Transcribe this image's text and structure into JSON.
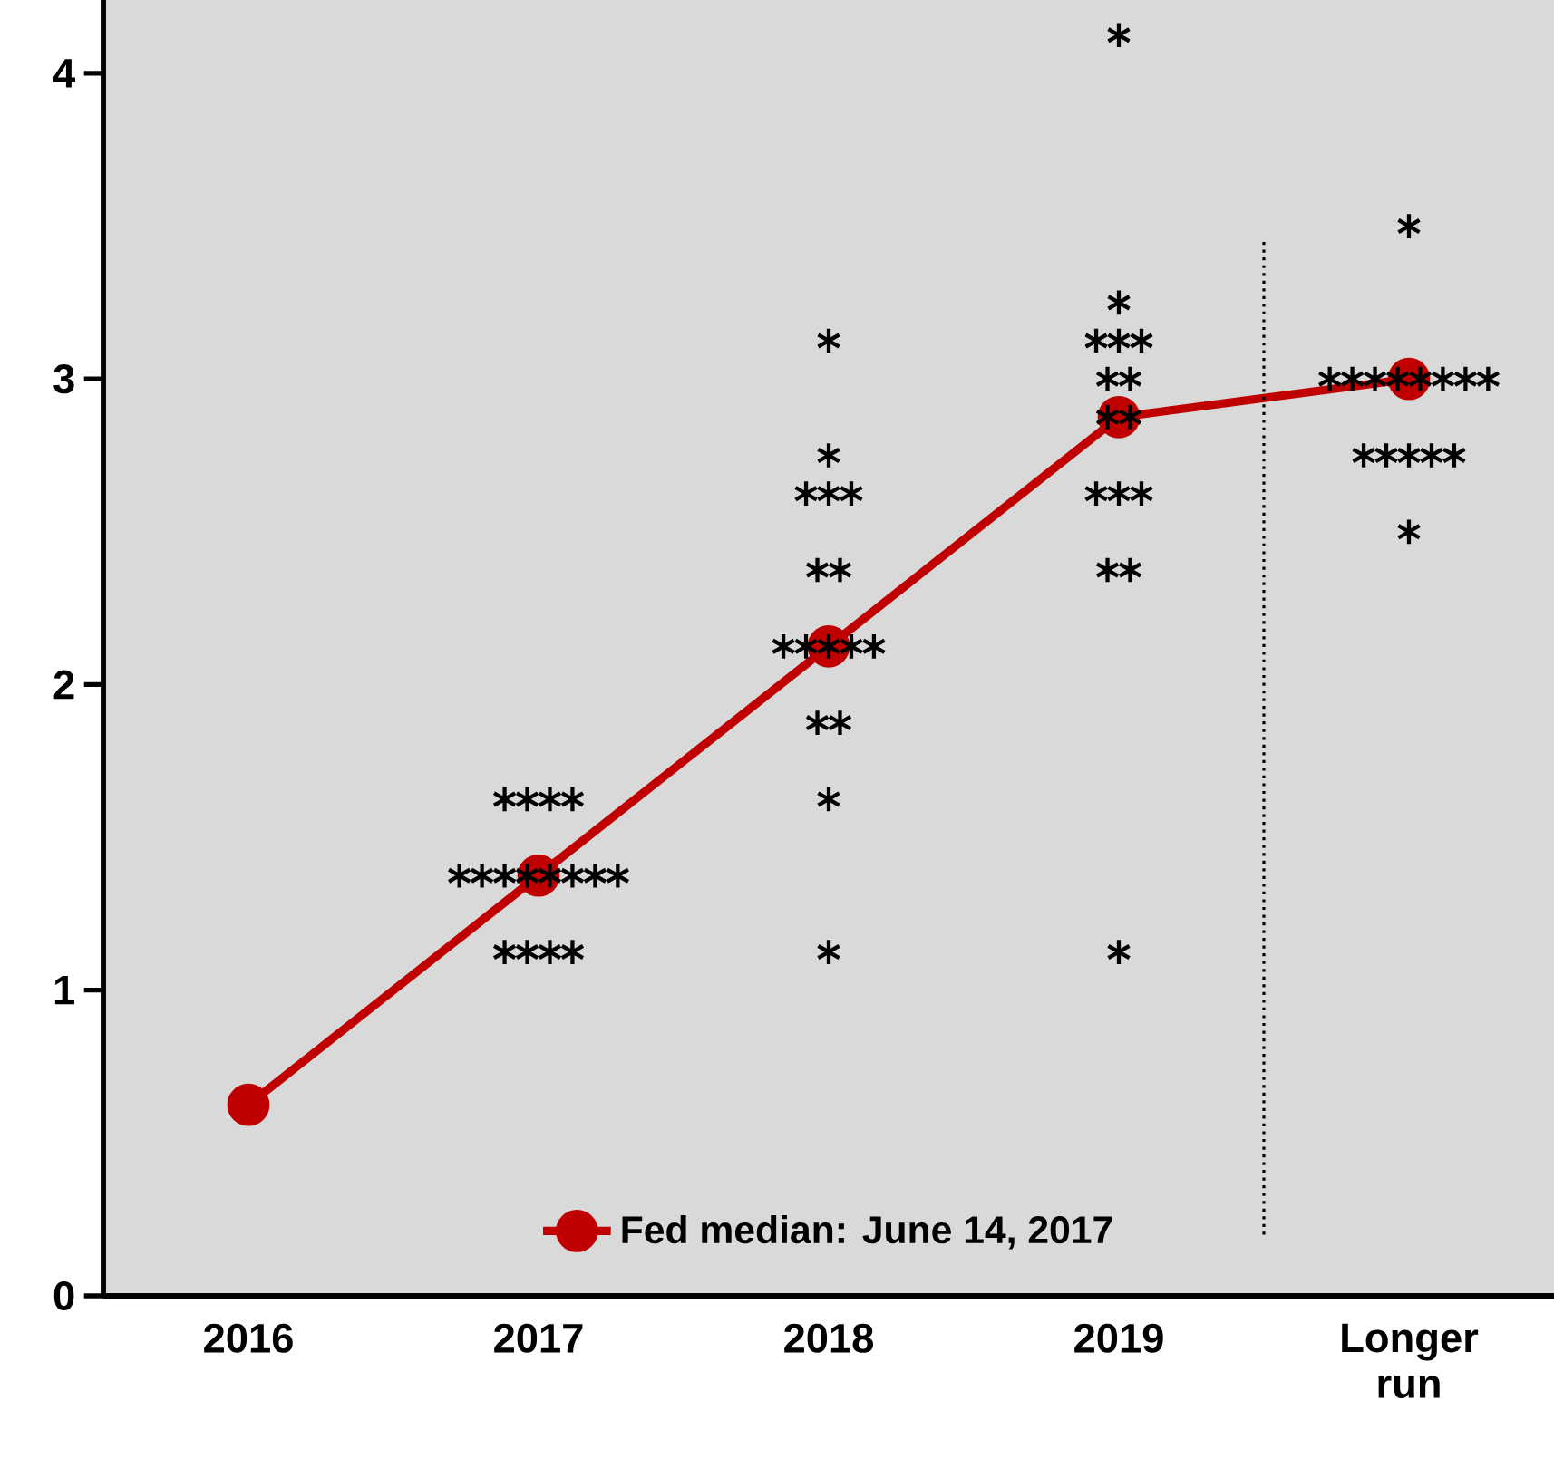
{
  "chart_data": {
    "type": "line",
    "categories": [
      "2016",
      "2017",
      "2018",
      "2019",
      "Longer run"
    ],
    "series": [
      {
        "name": "Fed median: June 14, 2017",
        "color": "#c00000",
        "values": [
          0.625,
          1.375,
          2.125,
          2.875,
          3.0
        ]
      },
      {
        "type": "scatter",
        "color": "#000000",
        "marker": "cross",
        "values": [
          null,
          1.625,
          3.125,
          4.125,
          3.5
        ]
      },
      {
        "type": "scatter",
        "color": "#000000",
        "marker": "cross",
        "values": [
          null,
          1.625,
          2.75,
          3.25,
          3.0
        ]
      },
      {
        "type": "scatter",
        "color": "#000000",
        "marker": "cross",
        "values": [
          null,
          1.625,
          2.625,
          3.125,
          3.0
        ]
      },
      {
        "type": "scatter",
        "color": "#000000",
        "marker": "cross",
        "values": [
          null,
          1.625,
          2.625,
          3.125,
          3.0
        ]
      },
      {
        "type": "scatter",
        "color": "#000000",
        "marker": "cross",
        "values": [
          null,
          1.375,
          2.625,
          3.125,
          3.0
        ]
      },
      {
        "type": "scatter",
        "color": "#000000",
        "marker": "cross",
        "values": [
          null,
          1.375,
          2.375,
          3.0,
          3.0
        ]
      },
      {
        "type": "scatter",
        "color": "#000000",
        "marker": "cross",
        "values": [
          null,
          1.375,
          2.375,
          3.0,
          3.0
        ]
      },
      {
        "type": "scatter",
        "color": "#000000",
        "marker": "cross",
        "values": [
          null,
          1.375,
          2.125,
          2.875,
          3.0
        ]
      },
      {
        "type": "scatter",
        "color": "#000000",
        "marker": "cross",
        "values": [
          null,
          1.375,
          2.125,
          2.875,
          3.0
        ]
      },
      {
        "type": "scatter",
        "color": "#000000",
        "marker": "cross",
        "values": [
          null,
          1.375,
          2.125,
          2.625,
          2.75
        ]
      },
      {
        "type": "scatter",
        "color": "#000000",
        "marker": "cross",
        "values": [
          null,
          1.375,
          2.125,
          2.625,
          2.75
        ]
      },
      {
        "type": "scatter",
        "color": "#000000",
        "marker": "cross",
        "values": [
          null,
          1.375,
          2.125,
          2.625,
          2.75
        ]
      },
      {
        "type": "scatter",
        "color": "#000000",
        "marker": "cross",
        "values": [
          null,
          1.125,
          1.875,
          2.375,
          2.75
        ]
      },
      {
        "type": "scatter",
        "color": "#000000",
        "marker": "cross",
        "values": [
          null,
          1.125,
          1.875,
          2.375,
          2.75
        ]
      },
      {
        "type": "scatter",
        "color": "#000000",
        "marker": "cross",
        "values": [
          null,
          1.125,
          1.625,
          1.125,
          2.5
        ]
      },
      {
        "type": "scatter",
        "color": "#000000",
        "marker": "cross",
        "values": [
          null,
          1.125,
          1.125,
          null,
          null
        ]
      }
    ],
    "marker": "circle",
    "line_style": "solid",
    "legend": "bottom",
    "ylim": [
      0,
      4.24
    ],
    "yticks": [
      0,
      1,
      2,
      3,
      4
    ]
  }
}
